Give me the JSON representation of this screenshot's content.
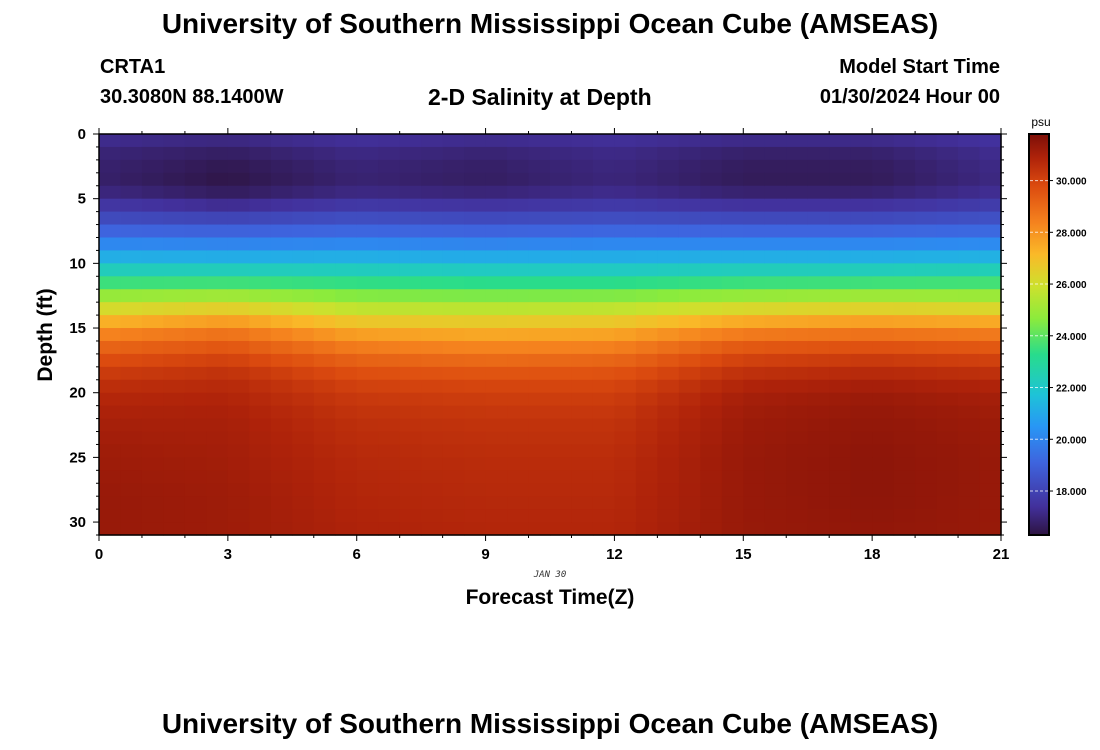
{
  "page": {
    "title": "University of Southern Mississippi Ocean Cube (AMSEAS)",
    "footer_title": "University of Southern Mississippi Ocean Cube (AMSEAS)"
  },
  "station": {
    "id": "CRTA1",
    "coords": "30.3080N  88.1400W"
  },
  "model": {
    "label": "Model Start Time",
    "start": "01/30/2024 Hour 00"
  },
  "chart_data": {
    "type": "heatmap",
    "title": "2-D Salinity at Depth",
    "xlabel": "Forecast Time(Z)",
    "ylabel": "Depth (ft)",
    "date_annotation": "JAN 30",
    "x_range": [
      0,
      21
    ],
    "x_ticks": [
      0,
      3,
      6,
      9,
      12,
      15,
      18,
      21
    ],
    "x_tick_labels": [
      "0",
      "3",
      "6",
      "9",
      "12",
      "15",
      "18",
      "21"
    ],
    "y_range": [
      0,
      31
    ],
    "y_ticks": [
      0,
      5,
      10,
      15,
      20,
      25,
      30
    ],
    "y_tick_labels": [
      "0",
      "5",
      "10",
      "15",
      "20",
      "25",
      "30"
    ],
    "colorbar": {
      "unit": "psu",
      "range": [
        16.3,
        31.8
      ],
      "ticks": [
        18,
        20,
        22,
        24,
        26,
        28,
        30
      ],
      "tick_labels": [
        "18.000",
        "20.000",
        "22.000",
        "24.000",
        "26.000",
        "28.000",
        "30.000"
      ]
    },
    "profile_depths_ft": [
      0,
      1,
      2,
      3,
      4,
      5,
      6,
      7,
      8,
      9,
      10,
      11,
      12,
      13,
      14,
      15,
      16,
      17,
      18,
      19,
      20,
      22,
      25,
      28,
      31
    ],
    "time_samples_hr": [
      0,
      3,
      6,
      9,
      12,
      15,
      18,
      21
    ],
    "salinity_profiles_psu": [
      [
        17.4,
        17.0,
        16.9,
        16.8,
        16.8,
        17.3,
        17.9,
        18.6,
        19.6,
        20.6,
        21.7,
        22.9,
        24.2,
        25.5,
        26.7,
        27.9,
        28.8,
        29.5,
        30.0,
        30.4,
        30.7,
        31.0,
        31.2,
        31.3,
        31.3
      ],
      [
        17.3,
        16.8,
        16.6,
        16.4,
        16.4,
        16.9,
        17.6,
        18.5,
        19.5,
        20.5,
        21.7,
        22.9,
        24.3,
        25.8,
        27.2,
        28.4,
        29.2,
        29.8,
        30.3,
        30.6,
        30.8,
        31.0,
        31.1,
        31.2,
        31.2
      ],
      [
        17.5,
        17.2,
        17.0,
        16.9,
        16.9,
        17.3,
        18.0,
        18.7,
        19.6,
        20.6,
        21.7,
        22.8,
        24.0,
        25.1,
        26.2,
        27.3,
        28.2,
        28.9,
        29.5,
        29.9,
        30.2,
        30.5,
        30.7,
        30.8,
        30.9
      ],
      [
        17.4,
        17.0,
        16.8,
        16.7,
        16.7,
        17.2,
        17.8,
        18.6,
        19.5,
        20.5,
        21.6,
        22.7,
        23.9,
        25.0,
        26.1,
        27.1,
        28.0,
        28.7,
        29.3,
        29.8,
        30.1,
        30.4,
        30.6,
        30.7,
        30.8
      ],
      [
        17.5,
        17.2,
        17.1,
        17.0,
        17.0,
        17.4,
        18.0,
        18.7,
        19.6,
        20.6,
        21.6,
        22.7,
        23.9,
        25.1,
        26.2,
        27.2,
        28.1,
        28.8,
        29.4,
        29.8,
        30.1,
        30.4,
        30.6,
        30.7,
        30.8
      ],
      [
        17.4,
        16.9,
        16.7,
        16.6,
        16.6,
        17.1,
        17.8,
        18.6,
        19.6,
        20.6,
        21.7,
        22.9,
        24.2,
        25.5,
        26.9,
        28.1,
        29.1,
        29.8,
        30.3,
        30.7,
        31.0,
        31.2,
        31.3,
        31.3,
        31.3
      ],
      [
        17.4,
        16.9,
        16.7,
        16.6,
        16.6,
        17.1,
        17.8,
        18.6,
        19.6,
        20.6,
        21.7,
        22.9,
        24.3,
        25.7,
        27.1,
        28.3,
        29.3,
        30.0,
        30.5,
        30.9,
        31.2,
        31.4,
        31.5,
        31.5,
        31.4
      ],
      [
        17.6,
        17.3,
        17.2,
        17.1,
        17.1,
        17.5,
        18.1,
        18.8,
        19.7,
        20.7,
        21.8,
        23.0,
        24.3,
        25.6,
        26.9,
        28.1,
        29.1,
        29.8,
        30.3,
        30.7,
        31.0,
        31.2,
        31.3,
        31.3,
        31.3
      ]
    ]
  }
}
